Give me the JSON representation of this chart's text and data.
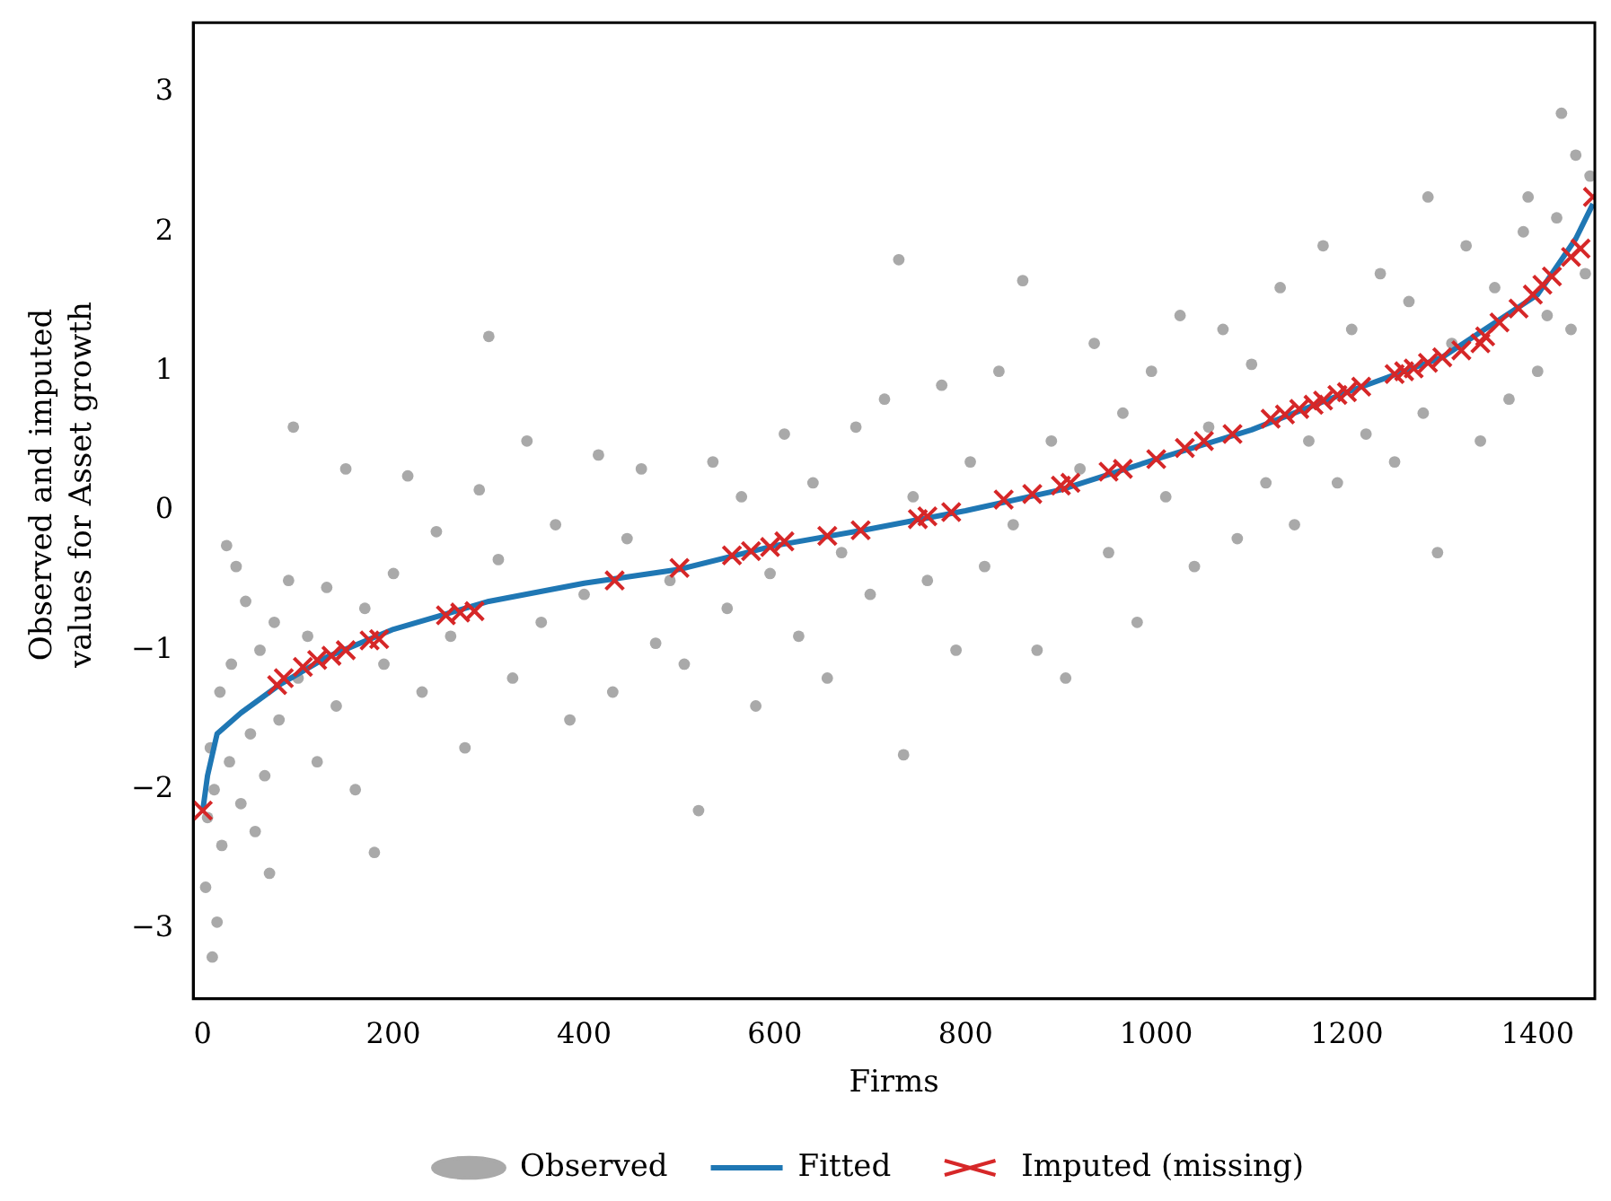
{
  "chart_data": {
    "type": "scatter",
    "xlabel": "Firms",
    "ylabel": "Observed and imputed values for Asset growth",
    "xlim": [
      -10,
      1460
    ],
    "ylim": [
      -3.5,
      3.5
    ],
    "xticks": [
      0,
      200,
      400,
      600,
      800,
      1000,
      1200,
      1400
    ],
    "yticks": [
      -3,
      -2,
      -1,
      0,
      1,
      2,
      3
    ],
    "grid": false,
    "legend": "bottom",
    "series": [
      {
        "name": "Observed",
        "type": "scatter",
        "marker": "circle",
        "color": "#a9a9a9",
        "x": [
          3,
          5,
          8,
          10,
          12,
          15,
          18,
          20,
          25,
          28,
          30,
          35,
          40,
          45,
          50,
          55,
          60,
          65,
          70,
          75,
          80,
          90,
          95,
          100,
          110,
          120,
          130,
          140,
          150,
          160,
          170,
          180,
          190,
          200,
          215,
          230,
          245,
          260,
          275,
          290,
          300,
          310,
          325,
          340,
          355,
          370,
          385,
          400,
          415,
          430,
          445,
          460,
          475,
          490,
          505,
          520,
          535,
          550,
          565,
          580,
          595,
          610,
          625,
          640,
          655,
          670,
          685,
          700,
          715,
          730,
          735,
          745,
          760,
          775,
          790,
          805,
          820,
          835,
          850,
          860,
          875,
          890,
          905,
          920,
          935,
          950,
          965,
          980,
          995,
          1010,
          1025,
          1040,
          1055,
          1070,
          1085,
          1100,
          1115,
          1130,
          1145,
          1160,
          1175,
          1190,
          1205,
          1220,
          1235,
          1250,
          1265,
          1280,
          1285,
          1295,
          1310,
          1325,
          1340,
          1355,
          1370,
          1385,
          1390,
          1400,
          1410,
          1420,
          1425,
          1435,
          1440,
          1450,
          1455
        ],
        "values": [
          -2.7,
          -2.2,
          -1.7,
          -3.2,
          -2.0,
          -2.95,
          -1.3,
          -2.4,
          -0.25,
          -1.8,
          -1.1,
          -0.4,
          -2.1,
          -0.65,
          -1.6,
          -2.3,
          -1.0,
          -1.9,
          -2.6,
          -0.8,
          -1.5,
          -0.5,
          0.6,
          -1.2,
          -0.9,
          -1.8,
          -0.55,
          -1.4,
          0.3,
          -2.0,
          -0.7,
          -2.45,
          -1.1,
          -0.45,
          0.25,
          -1.3,
          -0.15,
          -0.9,
          -1.7,
          0.15,
          1.25,
          -0.35,
          -1.2,
          0.5,
          -0.8,
          -0.1,
          -1.5,
          -0.6,
          0.4,
          -1.3,
          -0.2,
          0.3,
          -0.95,
          -0.5,
          -1.1,
          -2.15,
          0.35,
          -0.7,
          0.1,
          -1.4,
          -0.45,
          0.55,
          -0.9,
          0.2,
          -1.2,
          -0.3,
          0.6,
          -0.6,
          0.8,
          1.8,
          -1.75,
          0.1,
          -0.5,
          0.9,
          -1.0,
          0.35,
          -0.4,
          1.0,
          -0.1,
          1.65,
          -1.0,
          0.5,
          -1.2,
          0.3,
          1.2,
          -0.3,
          0.7,
          -0.8,
          1.0,
          0.1,
          1.4,
          -0.4,
          0.6,
          1.3,
          -0.2,
          1.05,
          0.2,
          1.6,
          -0.1,
          0.5,
          1.9,
          0.2,
          1.3,
          0.55,
          1.7,
          0.35,
          1.5,
          0.7,
          2.25,
          -0.3,
          1.2,
          1.9,
          0.5,
          1.6,
          0.8,
          2.0,
          2.25,
          1.0,
          1.4,
          2.1,
          2.85,
          1.3,
          2.55,
          1.7,
          2.4
        ]
      },
      {
        "name": "Fitted",
        "type": "line",
        "marker": "none",
        "line_style": "solid",
        "color": "#1f77b4",
        "x": [
          0,
          5,
          15,
          40,
          80,
          130,
          200,
          300,
          400,
          500,
          600,
          700,
          800,
          900,
          1000,
          1100,
          1200,
          1300,
          1400,
          1440,
          1458
        ],
        "values": [
          -2.15,
          -1.9,
          -1.6,
          -1.45,
          -1.25,
          -1.05,
          -0.85,
          -0.65,
          -0.52,
          -0.42,
          -0.25,
          -0.13,
          0.0,
          0.15,
          0.37,
          0.58,
          0.85,
          1.1,
          1.55,
          1.95,
          2.2
        ]
      },
      {
        "name": "Imputed (missing)",
        "type": "scatter",
        "marker": "cross",
        "color": "#d62728",
        "x": [
          0,
          78,
          85,
          105,
          120,
          135,
          150,
          175,
          185,
          255,
          270,
          285,
          432,
          500,
          555,
          575,
          595,
          610,
          655,
          690,
          750,
          760,
          785,
          840,
          870,
          900,
          910,
          950,
          965,
          1000,
          1030,
          1050,
          1080,
          1120,
          1135,
          1150,
          1165,
          1175,
          1190,
          1200,
          1215,
          1250,
          1260,
          1270,
          1285,
          1300,
          1320,
          1340,
          1345,
          1360,
          1380,
          1395,
          1405,
          1415,
          1435,
          1445,
          1458
        ],
        "values": [
          -2.15,
          -1.25,
          -1.2,
          -1.12,
          -1.07,
          -1.04,
          -1.0,
          -0.93,
          -0.92,
          -0.75,
          -0.73,
          -0.72,
          -0.5,
          -0.41,
          -0.32,
          -0.29,
          -0.26,
          -0.22,
          -0.18,
          -0.14,
          -0.06,
          -0.04,
          -0.01,
          0.08,
          0.12,
          0.18,
          0.2,
          0.28,
          0.3,
          0.37,
          0.45,
          0.5,
          0.55,
          0.66,
          0.69,
          0.73,
          0.76,
          0.79,
          0.83,
          0.85,
          0.89,
          0.98,
          1.0,
          1.02,
          1.06,
          1.1,
          1.15,
          1.2,
          1.25,
          1.35,
          1.45,
          1.55,
          1.62,
          1.68,
          1.82,
          1.88,
          2.25
        ]
      }
    ]
  }
}
